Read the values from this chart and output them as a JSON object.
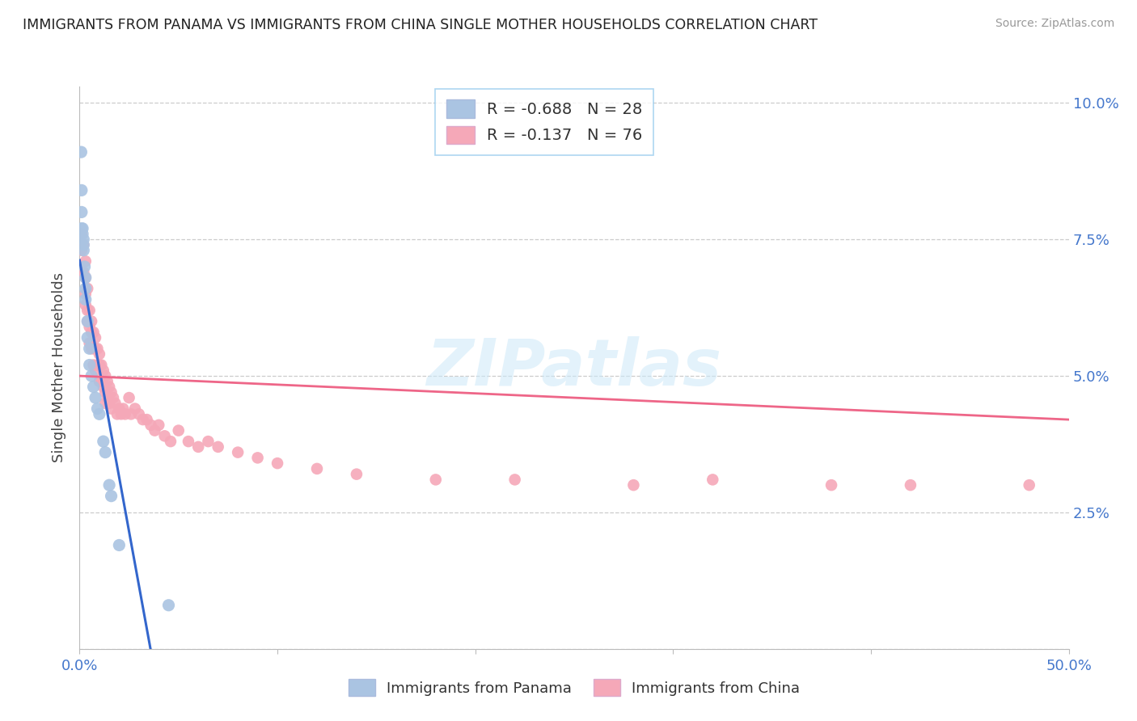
{
  "title": "IMMIGRANTS FROM PANAMA VS IMMIGRANTS FROM CHINA SINGLE MOTHER HOUSEHOLDS CORRELATION CHART",
  "source": "Source: ZipAtlas.com",
  "ylabel": "Single Mother Households",
  "xlim": [
    0.0,
    0.5
  ],
  "ylim": [
    0.0,
    0.103
  ],
  "legend_r_panama": "-0.688",
  "legend_n_panama": "28",
  "legend_r_china": "-0.137",
  "legend_n_china": "76",
  "panama_color": "#aac4e2",
  "china_color": "#f5a8b8",
  "panama_line_color": "#3366cc",
  "china_line_color": "#ee6688",
  "watermark": "ZIPatlas",
  "background_color": "#ffffff",
  "panama_x": [
    0.0008,
    0.001,
    0.001,
    0.001,
    0.0015,
    0.0015,
    0.002,
    0.002,
    0.002,
    0.0025,
    0.003,
    0.003,
    0.003,
    0.004,
    0.004,
    0.005,
    0.005,
    0.006,
    0.007,
    0.008,
    0.009,
    0.01,
    0.012,
    0.013,
    0.015,
    0.016,
    0.02,
    0.045
  ],
  "panama_y": [
    0.091,
    0.084,
    0.08,
    0.077,
    0.077,
    0.076,
    0.075,
    0.074,
    0.073,
    0.07,
    0.068,
    0.066,
    0.064,
    0.06,
    0.057,
    0.055,
    0.052,
    0.05,
    0.048,
    0.046,
    0.044,
    0.043,
    0.038,
    0.036,
    0.03,
    0.028,
    0.019,
    0.008
  ],
  "china_x": [
    0.001,
    0.001,
    0.002,
    0.002,
    0.003,
    0.003,
    0.003,
    0.003,
    0.004,
    0.004,
    0.004,
    0.005,
    0.005,
    0.005,
    0.006,
    0.006,
    0.006,
    0.007,
    0.007,
    0.007,
    0.008,
    0.008,
    0.008,
    0.009,
    0.009,
    0.01,
    0.01,
    0.01,
    0.011,
    0.011,
    0.012,
    0.012,
    0.013,
    0.013,
    0.013,
    0.014,
    0.014,
    0.015,
    0.015,
    0.016,
    0.016,
    0.017,
    0.018,
    0.019,
    0.02,
    0.021,
    0.022,
    0.023,
    0.025,
    0.026,
    0.028,
    0.03,
    0.032,
    0.034,
    0.036,
    0.038,
    0.04,
    0.043,
    0.046,
    0.05,
    0.055,
    0.06,
    0.065,
    0.07,
    0.08,
    0.09,
    0.1,
    0.12,
    0.14,
    0.18,
    0.22,
    0.28,
    0.32,
    0.38,
    0.42,
    0.48
  ],
  "china_y": [
    0.076,
    0.073,
    0.074,
    0.069,
    0.071,
    0.068,
    0.065,
    0.063,
    0.066,
    0.062,
    0.06,
    0.062,
    0.059,
    0.056,
    0.06,
    0.058,
    0.055,
    0.058,
    0.055,
    0.052,
    0.057,
    0.055,
    0.051,
    0.055,
    0.052,
    0.054,
    0.052,
    0.049,
    0.052,
    0.049,
    0.051,
    0.048,
    0.05,
    0.047,
    0.045,
    0.049,
    0.046,
    0.048,
    0.045,
    0.047,
    0.044,
    0.046,
    0.045,
    0.043,
    0.044,
    0.043,
    0.044,
    0.043,
    0.046,
    0.043,
    0.044,
    0.043,
    0.042,
    0.042,
    0.041,
    0.04,
    0.041,
    0.039,
    0.038,
    0.04,
    0.038,
    0.037,
    0.038,
    0.037,
    0.036,
    0.035,
    0.034,
    0.033,
    0.032,
    0.031,
    0.031,
    0.03,
    0.031,
    0.03,
    0.03,
    0.03
  ],
  "panama_line_x": [
    0.0,
    0.048
  ],
  "china_line_x": [
    0.0,
    0.5
  ],
  "china_line_y": [
    0.05,
    0.042
  ]
}
